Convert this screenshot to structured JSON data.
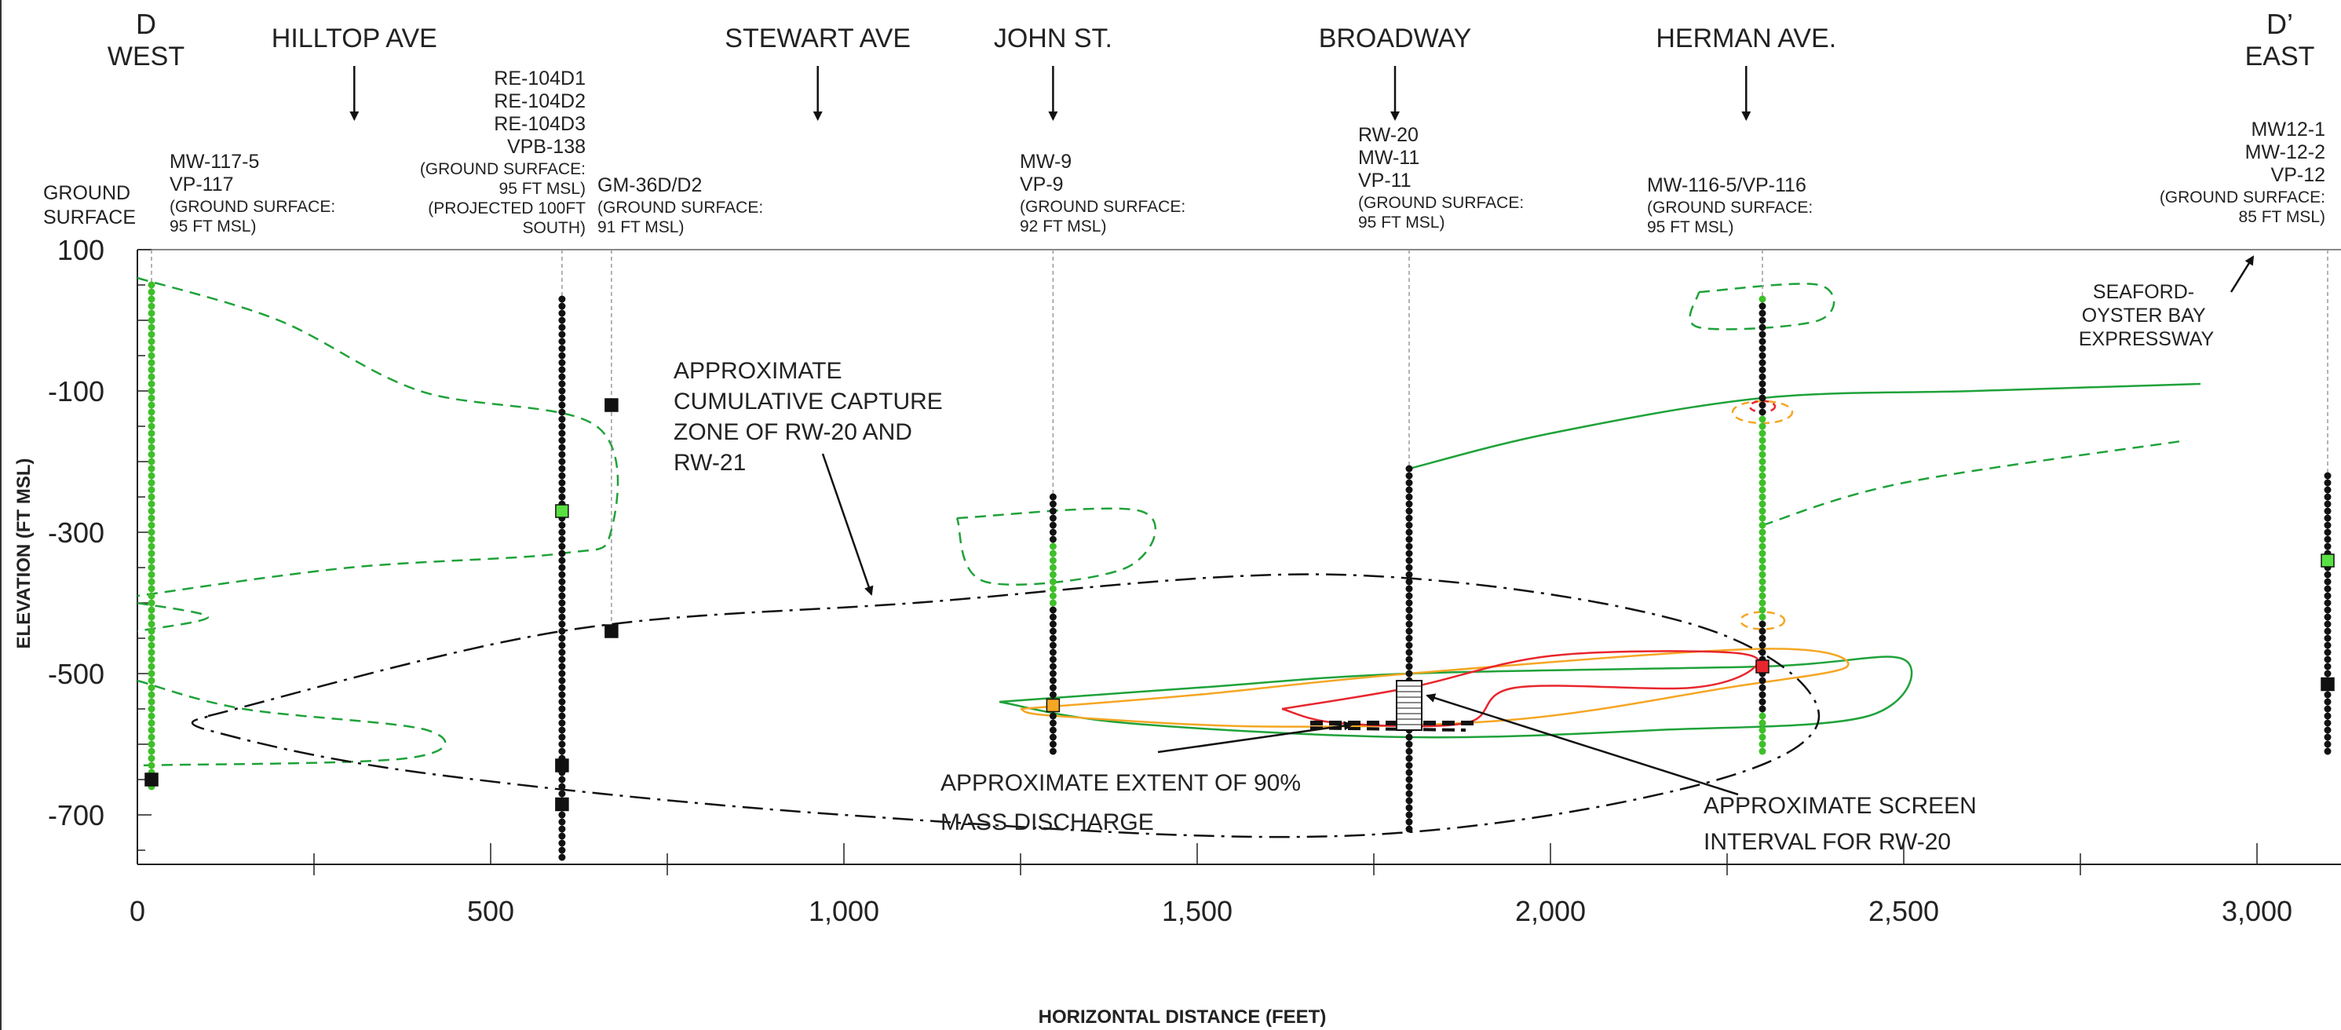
{
  "section": {
    "start_label": "D",
    "start_direction": "WEST",
    "end_label": "D’",
    "end_direction": "EAST"
  },
  "ground_surface_label": [
    "GROUND",
    "SURFACE"
  ],
  "streets": [
    {
      "name": "HILLTOP AVE",
      "x_ft": 307
    },
    {
      "name": "STEWART AVE",
      "x_ft": 963
    },
    {
      "name": "JOHN ST.",
      "x_ft": 1296
    },
    {
      "name": "BROADWAY",
      "x_ft": 1780
    },
    {
      "name": "HERMAN AVE.",
      "x_ft": 2277
    }
  ],
  "wells": [
    {
      "id": "mw117",
      "x_ft": 20,
      "names": [
        "MW-117-5",
        "VP-117"
      ],
      "gs": [
        "(GROUND SURFACE:",
        "95 FT MSL)"
      ],
      "top": 50,
      "bottom": -660,
      "sample_color": "green",
      "screens": [
        {
          "elev": -650,
          "color": "#111111"
        }
      ]
    },
    {
      "id": "re104",
      "x_ft": 601,
      "names": [
        "RE-104D1",
        "RE-104D2",
        "RE-104D3",
        "VPB-138"
      ],
      "gs": [
        "(GROUND SURFACE:",
        "95 FT MSL)",
        "(PROJECTED 100FT",
        "SOUTH)"
      ],
      "top": 30,
      "bottom": -760,
      "sample_color": "black",
      "screens": [
        {
          "elev": -270,
          "color": "#59e042"
        },
        {
          "elev": -630,
          "color": "#111111"
        },
        {
          "elev": -685,
          "color": "#111111"
        }
      ]
    },
    {
      "id": "gm36",
      "x_ft": 671,
      "names": [
        "GM-36D/D2"
      ],
      "gs": [
        "(GROUND SURFACE:",
        "91 FT MSL)"
      ],
      "top": null,
      "bottom": null,
      "sample_color": "none",
      "screens": [
        {
          "elev": -120,
          "color": "#111111"
        },
        {
          "elev": -440,
          "color": "#111111"
        }
      ]
    },
    {
      "id": "mw9",
      "x_ft": 1296,
      "names": [
        "MW-9",
        "VP-9"
      ],
      "gs": [
        "(GROUND SURFACE:",
        "92 FT MSL)"
      ],
      "top": -250,
      "bottom": -610,
      "sample_color": "mixed",
      "screens": [
        {
          "elev": -545,
          "color": "#f5a623"
        }
      ]
    },
    {
      "id": "rw20",
      "x_ft": 1800,
      "names": [
        "RW-20",
        "MW-11",
        "VP-11"
      ],
      "gs": [
        "(GROUND SURFACE:",
        "95 FT MSL)"
      ],
      "top": -210,
      "bottom": -720,
      "sample_color": "black",
      "screens": []
    },
    {
      "id": "mw116",
      "x_ft": 2300,
      "names": [
        "MW-116-5/VP-116"
      ],
      "gs": [
        "(GROUND SURFACE:",
        "95 FT MSL)"
      ],
      "top": 30,
      "bottom": -610,
      "sample_color": "mixed",
      "screens": [
        {
          "elev": -490,
          "color": "#e8262d"
        }
      ]
    },
    {
      "id": "mw12",
      "x_ft": 3100,
      "names": [
        "MW12-1",
        "MW-12-2",
        "VP-12"
      ],
      "gs": [
        "(GROUND SURFACE:",
        "85 FT MSL)"
      ],
      "top": -220,
      "bottom": -615,
      "sample_color": "black",
      "screens": [
        {
          "elev": -340,
          "color": "#59e042"
        },
        {
          "elev": -515,
          "color": "#111111"
        }
      ]
    }
  ],
  "expressway_label": [
    "SEAFORD-",
    "OYSTER BAY",
    "EXPRESSWAY"
  ],
  "notes": {
    "capture_zone": [
      "APPROXIMATE",
      "CUMULATIVE CAPTURE",
      "ZONE OF RW-20 AND",
      "RW-21"
    ],
    "mass_discharge": [
      "APPROXIMATE EXTENT OF 90%",
      "MASS DISCHARGE"
    ],
    "screen_interval": [
      "APPROXIMATE SCREEN",
      "INTERVAL FOR RW-20"
    ]
  },
  "colors": {
    "green": "#1fa23a",
    "orange": "#f5a623",
    "red": "#e8262d",
    "black": "#111111",
    "well_green": "#59e042"
  },
  "chart_data": {
    "type": "cross-section",
    "title": "",
    "xlabel": "HORIZONTAL DISTANCE (FEET)",
    "ylabel": "ELEVATION (FT MSL)",
    "xlim": [
      0,
      3100
    ],
    "ylim": [
      -760,
      100
    ],
    "x_ticks": [
      0,
      500,
      1000,
      1500,
      2000,
      2500,
      3000
    ],
    "x_tick_labels": [
      "0",
      "500",
      "1,000",
      "1,500",
      "2,000",
      "2,500",
      "3,000"
    ],
    "y_ticks": [
      100,
      -100,
      -300,
      -500,
      -700
    ],
    "y_tick_labels": [
      "100",
      "-100",
      "-300",
      "-500",
      "-700"
    ],
    "rw20_screen_interval": [
      -510,
      -580
    ],
    "contours": [
      {
        "name": "green-dashed-west",
        "color": "green",
        "style": "dashed",
        "points": [
          [
            0,
            60
          ],
          [
            200,
            0
          ],
          [
            400,
            -100
          ],
          [
            650,
            -150
          ],
          [
            670,
            -300
          ],
          [
            600,
            -330
          ],
          [
            300,
            -350
          ],
          [
            0,
            -390
          ]
        ]
      },
      {
        "name": "green-dashed-wlow",
        "color": "green",
        "style": "dashed",
        "points": [
          [
            0,
            -400
          ],
          [
            100,
            -420
          ],
          [
            0,
            -440
          ]
        ]
      },
      {
        "name": "green-dashed-wbot",
        "color": "green",
        "style": "dashed",
        "points": [
          [
            0,
            -510
          ],
          [
            150,
            -550
          ],
          [
            410,
            -580
          ],
          [
            380,
            -620
          ],
          [
            0,
            -630
          ]
        ]
      },
      {
        "name": "green-dashed-mw9",
        "color": "green",
        "style": "dashed",
        "points": [
          [
            1160,
            -280
          ],
          [
            1420,
            -270
          ],
          [
            1400,
            -350
          ],
          [
            1200,
            -370
          ]
        ]
      },
      {
        "name": "green-dashed-mw116top",
        "color": "green",
        "style": "dashed",
        "points": [
          [
            2210,
            40
          ],
          [
            2380,
            50
          ],
          [
            2380,
            0
          ],
          [
            2210,
            -10
          ]
        ]
      },
      {
        "name": "green-solid-upper",
        "color": "green",
        "style": "solid",
        "points": [
          [
            1800,
            -210
          ],
          [
            2000,
            -160
          ],
          [
            2300,
            -110
          ],
          [
            2600,
            -100
          ],
          [
            2920,
            -90
          ]
        ]
      },
      {
        "name": "green-dashed-lower-e",
        "color": "green",
        "style": "dashed",
        "points": [
          [
            2300,
            -290
          ],
          [
            2500,
            -230
          ],
          [
            2900,
            -170
          ]
        ]
      },
      {
        "name": "green-solid-main",
        "color": "green",
        "style": "solid",
        "points": [
          [
            1220,
            -540
          ],
          [
            1500,
            -520
          ],
          [
            1800,
            -500
          ],
          [
            2300,
            -490
          ],
          [
            2500,
            -480
          ],
          [
            2450,
            -560
          ],
          [
            2150,
            -580
          ],
          [
            1800,
            -590
          ],
          [
            1400,
            -570
          ]
        ]
      },
      {
        "name": "orange-solid",
        "color": "orange",
        "style": "solid",
        "points": [
          [
            1250,
            -550
          ],
          [
            1500,
            -530
          ],
          [
            1800,
            -500
          ],
          [
            2300,
            -465
          ],
          [
            2420,
            -490
          ],
          [
            2250,
            -520
          ],
          [
            1950,
            -565
          ],
          [
            1600,
            -575
          ],
          [
            1300,
            -560
          ]
        ]
      },
      {
        "name": "red-solid",
        "color": "red",
        "style": "solid",
        "points": [
          [
            1620,
            -550
          ],
          [
            1800,
            -520
          ],
          [
            2000,
            -475
          ],
          [
            2250,
            -470
          ],
          [
            2290,
            -490
          ],
          [
            2200,
            -520
          ],
          [
            1950,
            -520
          ],
          [
            1880,
            -570
          ],
          [
            1700,
            -570
          ]
        ]
      },
      {
        "name": "capture-zone",
        "color": "black",
        "style": "dashdot",
        "points": [
          [
            100,
            -560
          ],
          [
            600,
            -440
          ],
          [
            1100,
            -400
          ],
          [
            1700,
            -360
          ],
          [
            2200,
            -430
          ],
          [
            2380,
            -560
          ],
          [
            2200,
            -660
          ],
          [
            1700,
            -730
          ],
          [
            1000,
            -700
          ],
          [
            400,
            -640
          ],
          [
            100,
            -580
          ]
        ]
      }
    ]
  }
}
